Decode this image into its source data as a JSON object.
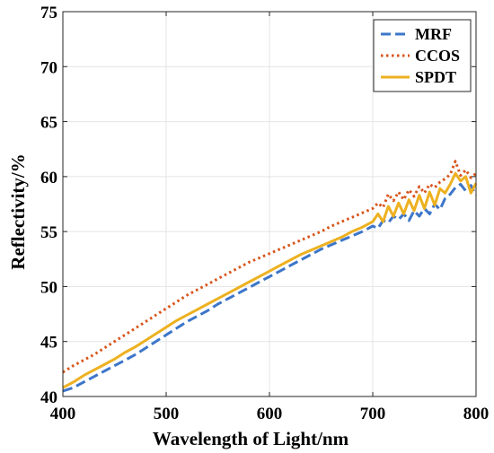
{
  "chart_data": {
    "type": "line",
    "xlabel": "Wavelength of Light/nm",
    "ylabel": "Reflectivity/%",
    "xlim": [
      400,
      800
    ],
    "ylim": [
      40,
      75
    ],
    "xticks": [
      400,
      500,
      600,
      700,
      800
    ],
    "yticks": [
      40,
      45,
      50,
      55,
      60,
      65,
      70,
      75
    ],
    "grid": true,
    "legend_position": "top-right",
    "series": [
      {
        "name": "MRF",
        "color": "#3d76c9",
        "style": "dashed",
        "x": [
          400,
          410,
          420,
          430,
          440,
          450,
          460,
          470,
          480,
          490,
          500,
          510,
          520,
          530,
          540,
          550,
          560,
          570,
          580,
          590,
          600,
          610,
          620,
          630,
          640,
          650,
          660,
          670,
          680,
          690,
          700,
          705,
          710,
          715,
          720,
          725,
          730,
          735,
          740,
          745,
          750,
          755,
          760,
          765,
          770,
          775,
          780,
          785,
          790,
          795,
          800
        ],
        "y": [
          40.5,
          40.8,
          41.3,
          41.8,
          42.3,
          42.8,
          43.3,
          43.8,
          44.4,
          45.0,
          45.6,
          46.2,
          46.8,
          47.3,
          47.8,
          48.4,
          48.9,
          49.4,
          49.9,
          50.4,
          50.9,
          51.4,
          51.9,
          52.4,
          52.9,
          53.4,
          53.8,
          54.2,
          54.6,
          55.0,
          55.5,
          55.3,
          56.0,
          55.8,
          56.4,
          56.1,
          56.6,
          56.0,
          56.9,
          56.4,
          57.1,
          56.6,
          57.5,
          57.0,
          58.0,
          58.4,
          59.0,
          59.3,
          58.7,
          59.2,
          58.3
        ]
      },
      {
        "name": "CCOS",
        "color": "#d9541a",
        "style": "dotted",
        "x": [
          400,
          410,
          420,
          430,
          440,
          450,
          460,
          470,
          480,
          490,
          500,
          510,
          520,
          530,
          540,
          550,
          560,
          570,
          580,
          590,
          600,
          610,
          620,
          630,
          640,
          650,
          660,
          670,
          680,
          690,
          700,
          705,
          710,
          715,
          720,
          725,
          730,
          735,
          740,
          745,
          750,
          755,
          760,
          765,
          770,
          775,
          780,
          785,
          790,
          795,
          800
        ],
        "y": [
          42.2,
          42.8,
          43.3,
          43.8,
          44.4,
          45.0,
          45.6,
          46.2,
          46.8,
          47.4,
          48.0,
          48.6,
          49.2,
          49.7,
          50.2,
          50.7,
          51.2,
          51.7,
          52.2,
          52.6,
          53.0,
          53.4,
          53.8,
          54.2,
          54.6,
          55.0,
          55.5,
          55.9,
          56.3,
          56.7,
          57.1,
          57.6,
          57.2,
          58.4,
          57.8,
          58.6,
          57.9,
          58.8,
          58.2,
          59.1,
          58.5,
          59.3,
          59.0,
          59.5,
          59.8,
          60.2,
          61.4,
          60.1,
          60.6,
          59.9,
          60.3
        ]
      },
      {
        "name": "SPDT",
        "color": "#edb120",
        "style": "solid",
        "x": [
          400,
          410,
          420,
          430,
          440,
          450,
          460,
          470,
          480,
          490,
          500,
          510,
          520,
          530,
          540,
          550,
          560,
          570,
          580,
          590,
          600,
          610,
          620,
          630,
          640,
          650,
          660,
          670,
          680,
          690,
          700,
          705,
          710,
          715,
          720,
          725,
          730,
          735,
          740,
          745,
          750,
          755,
          760,
          765,
          770,
          775,
          780,
          785,
          790,
          795,
          800
        ],
        "y": [
          40.8,
          41.3,
          41.9,
          42.4,
          42.9,
          43.4,
          44.0,
          44.5,
          45.1,
          45.7,
          46.3,
          46.9,
          47.4,
          47.9,
          48.4,
          48.9,
          49.4,
          49.9,
          50.4,
          50.9,
          51.4,
          51.9,
          52.4,
          52.9,
          53.3,
          53.7,
          54.1,
          54.5,
          55.0,
          55.4,
          55.9,
          56.6,
          55.9,
          57.3,
          56.4,
          57.6,
          56.6,
          57.9,
          56.9,
          58.3,
          57.1,
          58.6,
          57.4,
          58.9,
          58.5,
          59.3,
          60.3,
          59.6,
          60.0,
          58.5,
          59.4
        ]
      }
    ]
  }
}
